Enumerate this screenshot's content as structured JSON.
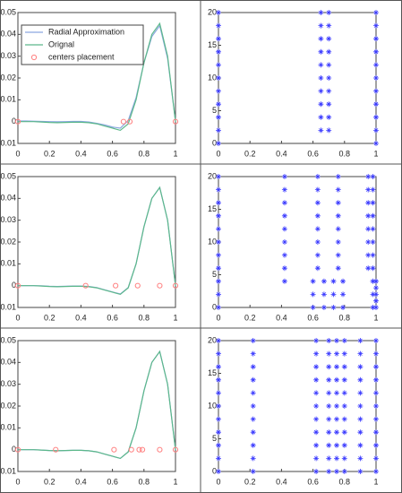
{
  "chart_data": [
    {
      "type": "line",
      "legend": "upper left",
      "x": [
        0,
        0.05,
        0.1,
        0.15,
        0.2,
        0.25,
        0.3,
        0.35,
        0.4,
        0.45,
        0.5,
        0.55,
        0.6,
        0.65,
        0.7,
        0.75,
        0.8,
        0.85,
        0.9,
        0.95,
        1
      ],
      "xlim": [
        0,
        1
      ],
      "xticks": [
        0,
        0.2,
        0.4,
        0.6,
        0.8,
        1
      ],
      "ylim": [
        -0.01,
        0.05
      ],
      "yticks": [
        0.05,
        0.04,
        0.03,
        0.02,
        0.01,
        0,
        {
          "value": -0.01,
          "label": "0.01"
        }
      ],
      "series": [
        {
          "name": "Radial Approximation",
          "color": "#8aa6e0",
          "values": [
            0.0003,
            0.0003,
            0.0002,
            0.0001,
            0,
            -0.0001,
            0,
            0.0001,
            0.0001,
            -0.0002,
            -0.0008,
            -0.0015,
            -0.0025,
            -0.003,
            0.0005,
            0.011,
            0.027,
            0.039,
            0.044,
            0.029,
            0.0003
          ]
        },
        {
          "name": "Orignal",
          "color": "#5cb88a",
          "values": [
            0,
            0,
            0,
            -0.0002,
            -0.0004,
            -0.0005,
            -0.0004,
            -0.0003,
            -0.0003,
            -0.0005,
            -0.001,
            -0.002,
            -0.003,
            -0.004,
            -0.001,
            0.01,
            0.027,
            0.04,
            0.045,
            0.03,
            0
          ]
        },
        {
          "name": "centers placement",
          "type": "scatter",
          "color": "#ff8080",
          "x": [
            0,
            0.67,
            0.71,
            1
          ],
          "values": [
            0,
            0,
            0,
            0
          ]
        }
      ]
    },
    {
      "type": "scatter",
      "color": "#3a3aff",
      "xlim": [
        0,
        1
      ],
      "xticks": [
        0,
        0.2,
        0.4,
        0.6,
        0.8,
        1
      ],
      "ylim": [
        0,
        20
      ],
      "yticks": [
        0,
        5,
        10,
        15,
        20
      ],
      "series": [
        {
          "x": [
            0,
            0,
            0,
            0,
            0,
            0,
            0,
            0,
            0,
            0,
            0
          ],
          "y": [
            0,
            2,
            4,
            6,
            8,
            10,
            12,
            14,
            16,
            18,
            20
          ]
        },
        {
          "x": [
            0.65,
            0.65,
            0.65,
            0.65,
            0.65,
            0.65,
            0.65,
            0.65,
            0.65,
            0.65
          ],
          "y": [
            2,
            4,
            6,
            8,
            10,
            12,
            14,
            16,
            18,
            20
          ]
        },
        {
          "x": [
            0.7,
            0.7,
            0.7,
            0.7,
            0.7,
            0.7,
            0.7,
            0.7,
            0.7,
            0.7
          ],
          "y": [
            2,
            4,
            6,
            8,
            10,
            12,
            14,
            16,
            18,
            20
          ]
        },
        {
          "x": [
            1,
            1,
            1,
            1,
            1,
            1,
            1,
            1,
            1,
            1,
            1
          ],
          "y": [
            0,
            2,
            4,
            6,
            8,
            10,
            12,
            14,
            16,
            18,
            20
          ]
        }
      ]
    },
    {
      "type": "line",
      "x": [
        0,
        0.05,
        0.1,
        0.15,
        0.2,
        0.25,
        0.3,
        0.35,
        0.4,
        0.45,
        0.5,
        0.55,
        0.6,
        0.65,
        0.7,
        0.75,
        0.8,
        0.85,
        0.9,
        0.95,
        1
      ],
      "xlim": [
        0,
        1
      ],
      "xticks": [
        0,
        0.2,
        0.4,
        0.6,
        0.8,
        1
      ],
      "ylim": [
        -0.01,
        0.05
      ],
      "yticks": [
        0.05,
        0.04,
        0.03,
        0.02,
        0.01,
        0,
        {
          "value": -0.01,
          "label": "0.01"
        }
      ],
      "series": [
        {
          "color": "#8aa6e0",
          "values": [
            0,
            0,
            0,
            -0.0001,
            -0.0003,
            -0.0004,
            -0.0003,
            -0.0002,
            -0.0002,
            -0.0004,
            -0.0009,
            -0.0019,
            -0.0029,
            -0.0038,
            -0.0009,
            0.01,
            0.027,
            0.04,
            0.045,
            0.03,
            0
          ]
        },
        {
          "color": "#5cb88a",
          "values": [
            0,
            0,
            0,
            -0.0002,
            -0.0004,
            -0.0005,
            -0.0004,
            -0.0003,
            -0.0003,
            -0.0005,
            -0.001,
            -0.002,
            -0.003,
            -0.004,
            -0.001,
            0.01,
            0.027,
            0.04,
            0.045,
            0.03,
            0
          ]
        },
        {
          "type": "scatter",
          "color": "#ff8080",
          "x": [
            0,
            0.43,
            0.62,
            0.76,
            0.9,
            1
          ],
          "values": [
            0,
            0,
            0,
            0,
            0,
            0
          ]
        }
      ]
    },
    {
      "type": "scatter",
      "color": "#3a3aff",
      "xlim": [
        0,
        1
      ],
      "xticks": [
        0,
        0.2,
        0.4,
        0.6,
        0.8,
        1
      ],
      "ylim": [
        0,
        20
      ],
      "yticks": [
        0,
        5,
        10,
        15,
        20
      ],
      "series": [
        {
          "x": [
            0,
            0,
            0,
            0,
            0,
            0,
            0,
            0,
            0,
            0,
            0
          ],
          "y": [
            0,
            2,
            4,
            6,
            8,
            10,
            12,
            14,
            16,
            18,
            20
          ]
        },
        {
          "x": [
            0.42,
            0.42,
            0.42,
            0.42,
            0.42,
            0.42,
            0.42,
            0.42,
            0.42
          ],
          "y": [
            4,
            6,
            8,
            10,
            12,
            14,
            16,
            18,
            20
          ]
        },
        {
          "x": [
            0.6,
            0.6,
            0.6
          ],
          "y": [
            0,
            2,
            4
          ]
        },
        {
          "x": [
            0.63,
            0.63,
            0.63,
            0.63,
            0.63,
            0.63,
            0.63,
            0.63
          ],
          "y": [
            6,
            8,
            10,
            12,
            14,
            16,
            18,
            20
          ]
        },
        {
          "x": [
            0.67,
            0.67,
            0.67
          ],
          "y": [
            0,
            2,
            4
          ]
        },
        {
          "x": [
            0.73,
            0.73,
            0.73
          ],
          "y": [
            0,
            2,
            4
          ]
        },
        {
          "x": [
            0.76,
            0.76,
            0.76,
            0.76,
            0.76,
            0.76,
            0.76,
            0.76
          ],
          "y": [
            6,
            8,
            10,
            12,
            14,
            16,
            18,
            20
          ]
        },
        {
          "x": [
            0.79,
            0.79,
            0.79
          ],
          "y": [
            0,
            2,
            4
          ]
        },
        {
          "x": [
            0.95,
            0.95,
            0.95,
            0.95,
            0.95,
            0.95,
            0.95,
            0.95
          ],
          "y": [
            6,
            8,
            10,
            12,
            14,
            16,
            18,
            20
          ]
        },
        {
          "x": [
            0.98,
            0.98,
            0.98,
            0.98,
            0.98,
            0.98,
            0.98,
            0.98,
            0.98,
            0.98,
            0.98
          ],
          "y": [
            0,
            2,
            4,
            6,
            8,
            10,
            12,
            14,
            16,
            18,
            20
          ]
        },
        {
          "x": [
            1,
            1,
            1,
            1,
            1
          ],
          "y": [
            0,
            1,
            2,
            3,
            4
          ]
        }
      ]
    },
    {
      "type": "line",
      "x": [
        0,
        0.05,
        0.1,
        0.15,
        0.2,
        0.25,
        0.3,
        0.35,
        0.4,
        0.45,
        0.5,
        0.55,
        0.6,
        0.65,
        0.7,
        0.75,
        0.8,
        0.85,
        0.9,
        0.95,
        1
      ],
      "xlim": [
        0,
        1
      ],
      "xticks": [
        0,
        0.2,
        0.4,
        0.6,
        0.8,
        1
      ],
      "ylim": [
        -0.01,
        0.05
      ],
      "yticks": [
        0.05,
        0.04,
        0.03,
        0.02,
        0.01,
        0,
        {
          "value": -0.01,
          "label": "0.01"
        }
      ],
      "series": [
        {
          "color": "#8aa6e0",
          "values": [
            0,
            0,
            0,
            -0.0002,
            -0.0004,
            -0.0005,
            -0.0004,
            -0.0003,
            -0.0003,
            -0.0005,
            -0.001,
            -0.002,
            -0.003,
            -0.004,
            -0.001,
            0.01,
            0.027,
            0.04,
            0.045,
            0.03,
            0
          ]
        },
        {
          "color": "#5cb88a",
          "values": [
            0,
            0,
            0,
            -0.0002,
            -0.0004,
            -0.0005,
            -0.0004,
            -0.0003,
            -0.0003,
            -0.0005,
            -0.001,
            -0.002,
            -0.003,
            -0.004,
            -0.001,
            0.01,
            0.027,
            0.04,
            0.045,
            0.03,
            0
          ]
        },
        {
          "type": "scatter",
          "color": "#ff8080",
          "x": [
            0,
            0.24,
            0.61,
            0.72,
            0.77,
            0.79,
            0.9,
            1
          ],
          "values": [
            0,
            0,
            0,
            0,
            0,
            0,
            0,
            0
          ]
        }
      ]
    },
    {
      "type": "scatter",
      "color": "#3a3aff",
      "xlim": [
        0,
        1
      ],
      "xticks": [
        0,
        0.2,
        0.4,
        0.6,
        0.8,
        1
      ],
      "ylim": [
        0,
        20
      ],
      "yticks": [
        0,
        5,
        10,
        15,
        20
      ],
      "series": [
        {
          "x": [
            0,
            0,
            0,
            0,
            0,
            0,
            0,
            0,
            0,
            0,
            0
          ],
          "y": [
            0,
            2,
            4,
            6,
            8,
            10,
            12,
            14,
            16,
            18,
            20
          ]
        },
        {
          "x": [
            0.22,
            0.22,
            0.22,
            0.22,
            0.22,
            0.22,
            0.22,
            0.22,
            0.22,
            0.22,
            0.22
          ],
          "y": [
            0,
            2,
            4,
            6,
            8,
            10,
            12,
            14,
            16,
            18,
            20
          ]
        },
        {
          "x": [
            0.62,
            0.62,
            0.62,
            0.62,
            0.62,
            0.62,
            0.62,
            0.62,
            0.62,
            0.62,
            0.62
          ],
          "y": [
            0,
            2,
            4,
            6,
            8,
            10,
            12,
            14,
            16,
            18,
            20
          ]
        },
        {
          "x": [
            0.7,
            0.7,
            0.7,
            0.7,
            0.7,
            0.7,
            0.7,
            0.7,
            0.7,
            0.7,
            0.7
          ],
          "y": [
            0,
            2,
            4,
            6,
            8,
            10,
            12,
            14,
            16,
            18,
            20
          ]
        },
        {
          "x": [
            0.75,
            0.75,
            0.75,
            0.75,
            0.75,
            0.75,
            0.75,
            0.75,
            0.75,
            0.75,
            0.75
          ],
          "y": [
            0,
            2,
            4,
            6,
            8,
            10,
            12,
            14,
            16,
            18,
            20
          ]
        },
        {
          "x": [
            0.8,
            0.8,
            0.8,
            0.8,
            0.8,
            0.8,
            0.8,
            0.8,
            0.8,
            0.8,
            0.8
          ],
          "y": [
            0,
            2,
            4,
            6,
            8,
            10,
            12,
            14,
            16,
            18,
            20
          ]
        },
        {
          "x": [
            0.9,
            0.9,
            0.9,
            0.9,
            0.9,
            0.9,
            0.9,
            0.9,
            0.9,
            0.9,
            0.9
          ],
          "y": [
            0,
            2,
            4,
            6,
            8,
            10,
            12,
            14,
            16,
            18,
            20
          ]
        },
        {
          "x": [
            1,
            1,
            1,
            1,
            1,
            1,
            1,
            1,
            1,
            1,
            1
          ],
          "y": [
            0,
            2,
            4,
            6,
            8,
            10,
            12,
            14,
            16,
            18,
            20
          ]
        }
      ]
    }
  ]
}
